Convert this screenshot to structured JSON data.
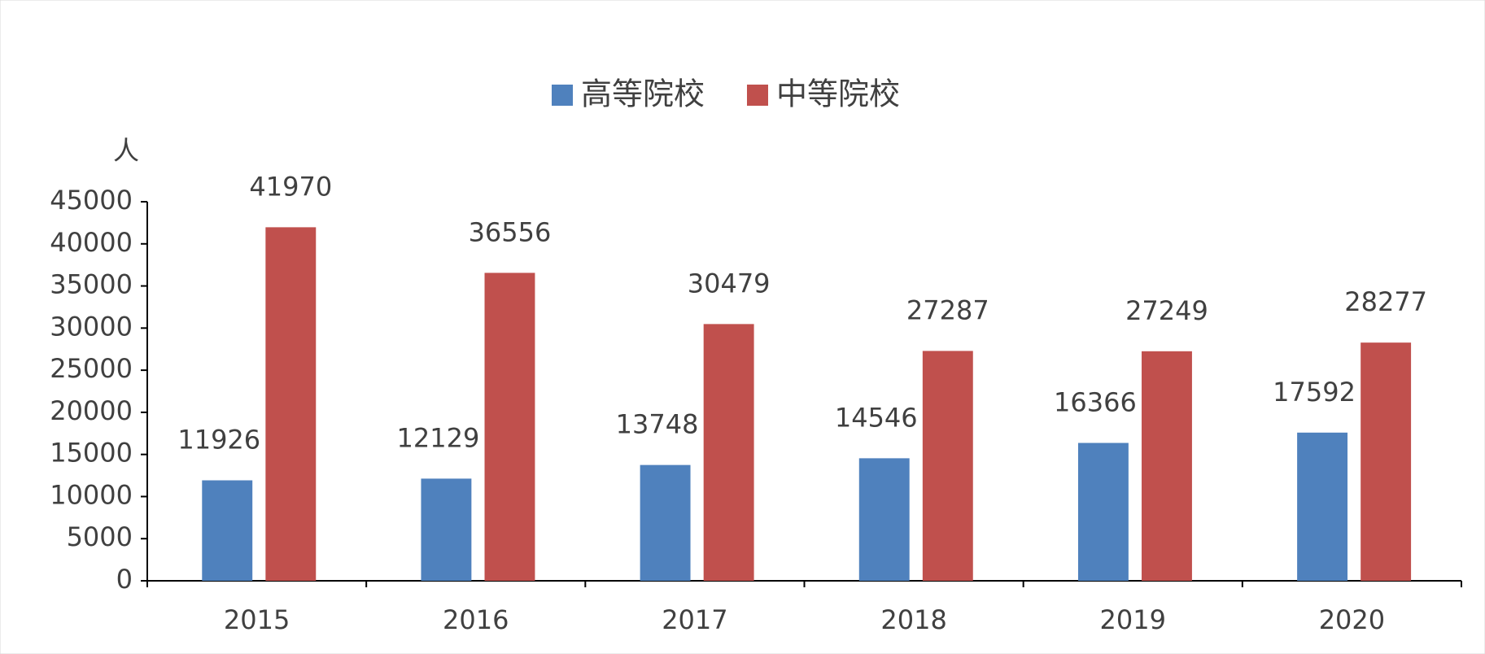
{
  "chart_data": {
    "type": "bar",
    "y_label": "人",
    "categories": [
      "2015",
      "2016",
      "2017",
      "2018",
      "2019",
      "2020"
    ],
    "series": [
      {
        "name": "高等院校",
        "color": "#4f81bd",
        "values": [
          11926,
          12129,
          13748,
          14546,
          16366,
          17592
        ]
      },
      {
        "name": "中等院校",
        "color": "#c0504d",
        "values": [
          41970,
          36556,
          30479,
          27287,
          27249,
          28277
        ]
      }
    ],
    "ylim": [
      0,
      45000
    ],
    "yticks": [
      0,
      5000,
      10000,
      15000,
      20000,
      25000,
      30000,
      35000,
      40000,
      45000
    ],
    "legend": "top"
  }
}
